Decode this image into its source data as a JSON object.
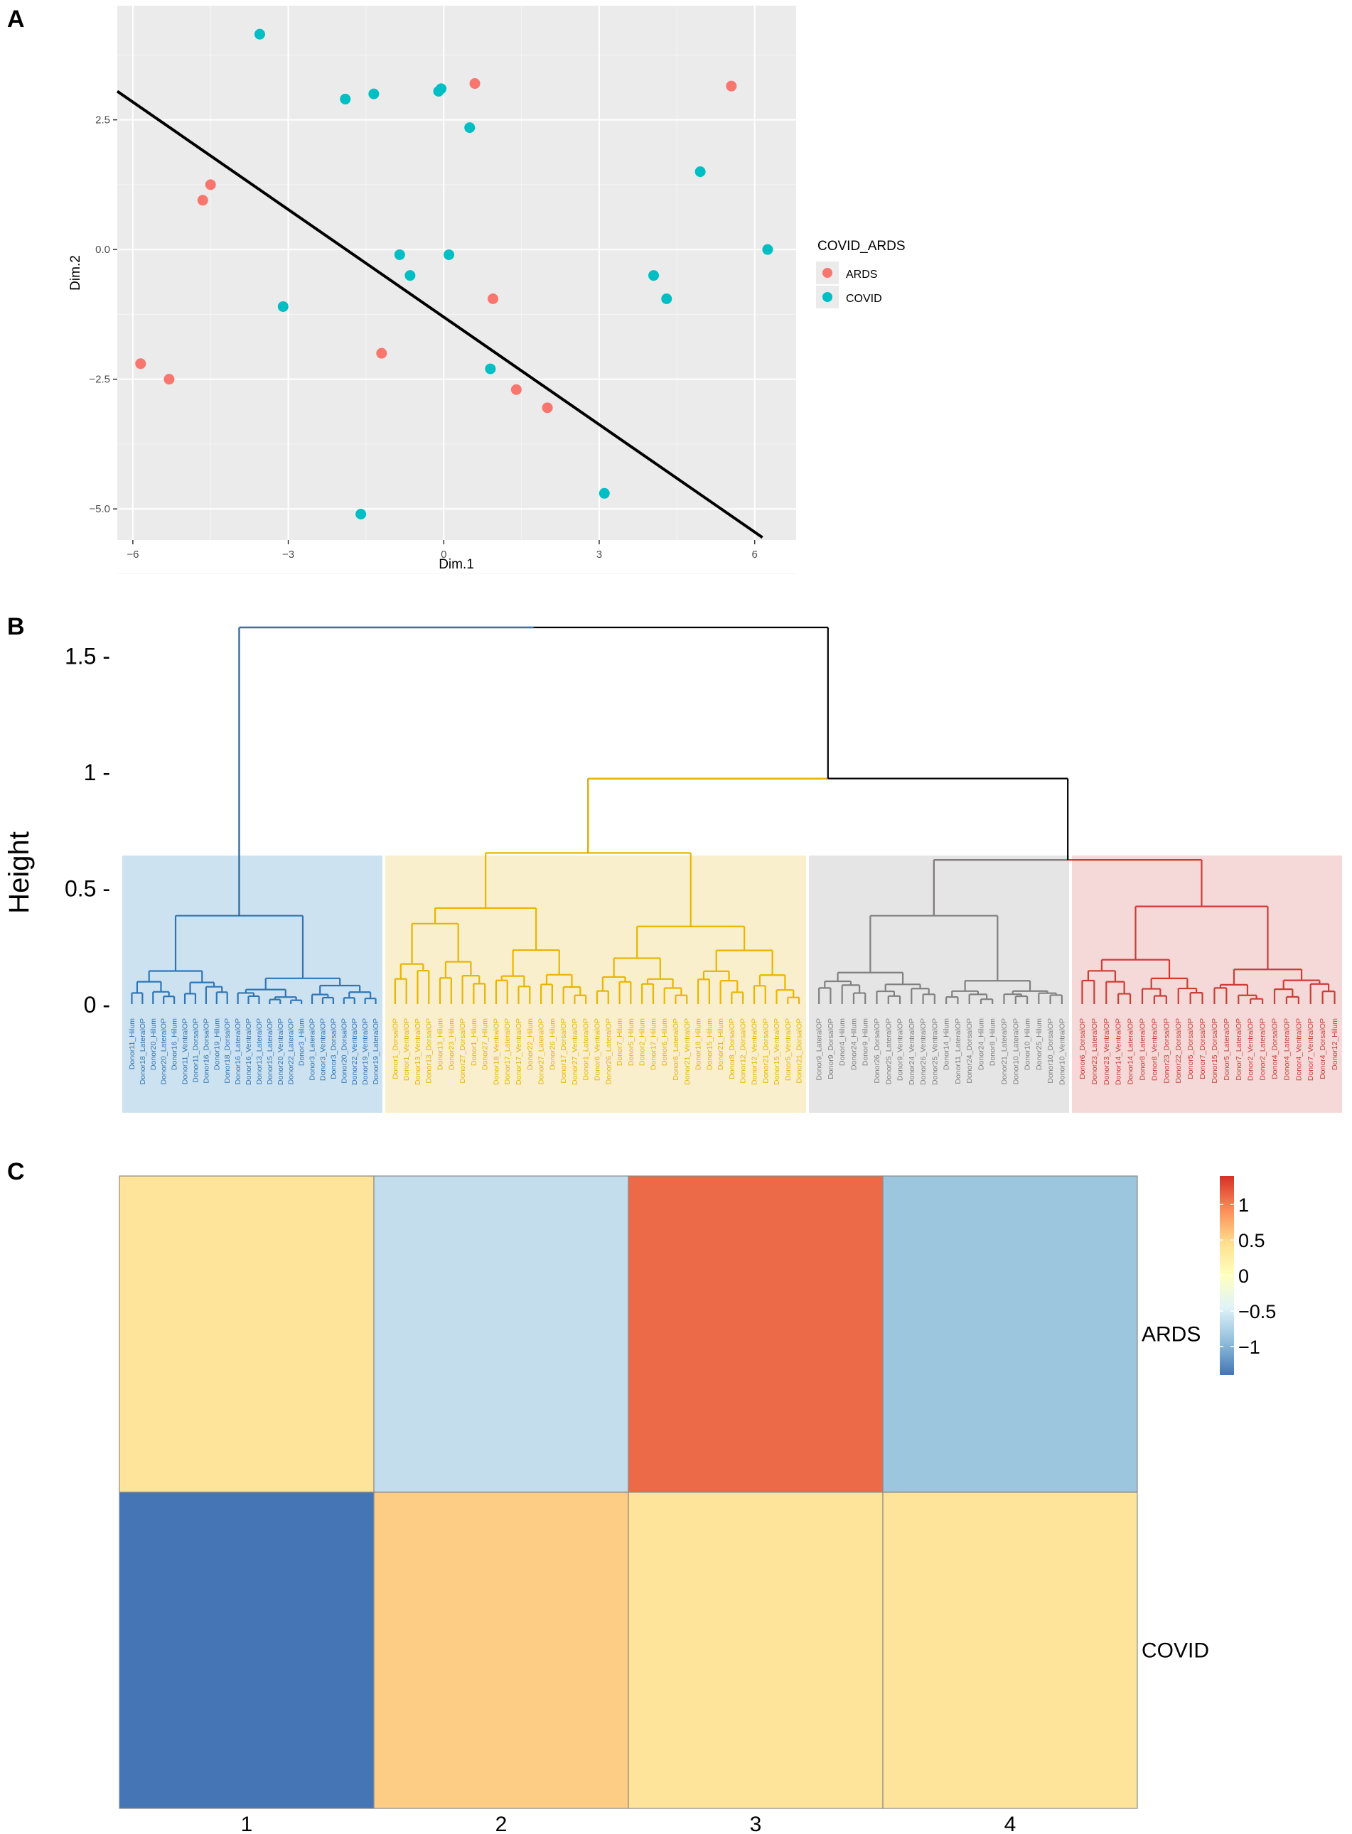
{
  "panels": {
    "a": {
      "letter": "A"
    },
    "b": {
      "letter": "B"
    },
    "c": {
      "letter": "C"
    }
  },
  "chart_data": [
    {
      "type": "scatter",
      "title": "",
      "xlabel": "Dim.1",
      "ylabel": "Dim.2",
      "xlim": [
        -6.3,
        6.8
      ],
      "ylim": [
        -5.6,
        4.7
      ],
      "x_ticks": [
        {
          "value": -6,
          "label": "−6"
        },
        {
          "value": -3,
          "label": "−3"
        },
        {
          "value": 0,
          "label": "0"
        },
        {
          "value": 3,
          "label": "3"
        },
        {
          "value": 6,
          "label": "6"
        }
      ],
      "y_ticks": [
        {
          "value": 2.5,
          "label": "2.5"
        },
        {
          "value": 0,
          "label": "0.0"
        },
        {
          "value": -2.5,
          "label": "−2.5"
        },
        {
          "value": -5,
          "label": "−5.0"
        }
      ],
      "legend": {
        "title": "COVID_ARDS",
        "position": "right",
        "entries": [
          {
            "label": "ARDS",
            "color": "#F8766D"
          },
          {
            "label": "COVID",
            "color": "#00BFC4"
          }
        ]
      },
      "series": [
        {
          "name": "ARDS",
          "color": "#F8766D",
          "points": [
            [
              0.6,
              3.2
            ],
            [
              5.55,
              3.15
            ],
            [
              -4.5,
              1.25
            ],
            [
              -4.65,
              0.95
            ],
            [
              0.95,
              -0.95
            ],
            [
              -1.2,
              -2.0
            ],
            [
              -5.85,
              -2.2
            ],
            [
              -5.3,
              -2.5
            ],
            [
              1.4,
              -2.7
            ],
            [
              2.0,
              -3.05
            ]
          ]
        },
        {
          "name": "COVID",
          "color": "#00BFC4",
          "points": [
            [
              -3.55,
              4.15
            ],
            [
              -1.9,
              2.9
            ],
            [
              -1.35,
              3.0
            ],
            [
              -0.1,
              3.05
            ],
            [
              -0.05,
              3.1
            ],
            [
              0.5,
              2.35
            ],
            [
              4.95,
              1.5
            ],
            [
              6.25,
              0.0
            ],
            [
              -0.85,
              -0.1
            ],
            [
              0.1,
              -0.1
            ],
            [
              -0.65,
              -0.5
            ],
            [
              -3.1,
              -1.1
            ],
            [
              4.05,
              -0.5
            ],
            [
              4.3,
              -0.95
            ],
            [
              0.9,
              -2.3
            ],
            [
              3.1,
              -4.7
            ],
            [
              -1.6,
              -5.1
            ]
          ]
        }
      ],
      "line": {
        "from": [
          -6.3,
          3.05
        ],
        "to": [
          6.15,
          -5.55
        ],
        "color": "#000000"
      }
    },
    {
      "type": "dendrogram",
      "ylabel": "Height",
      "ylim": [
        0,
        1.65
      ],
      "y_ticks": [
        {
          "value": 1.5,
          "label": "1.5 -"
        },
        {
          "value": 1,
          "label": "1 -"
        },
        {
          "value": 0.5,
          "label": "0.5 -"
        },
        {
          "value": 0,
          "label": "0 -"
        }
      ],
      "root_height": 1.62,
      "colors": {
        "blue": "#2e75b6",
        "yellow": "#e8b500",
        "grey": "#808080",
        "red": "#cd3c35"
      },
      "clusters": [
        {
          "name": "blue",
          "color": "#2e75b6",
          "bg": "#cde2f0",
          "labels": [
            "Donor11_Hilum",
            "Donor18_LateralOP",
            "Donor20_Hilum",
            "Donor20_LateralOP",
            "Donor16_Hilum",
            "Donor11_VentralOP",
            "Donor11_DorsalOP",
            "Donor16_DorsalOP",
            "Donor19_Hilum",
            "Donor18_DorsalOP",
            "Donor16_LateralOP",
            "Donor16_VentralOP",
            "Donor13_LateralOP",
            "Donor15_LateralOP",
            "Donor20_VentralOP",
            "Donor22_LateralOP",
            "Donor3_Hilum",
            "Donor3_LateralOP",
            "Donor3_VentralOP",
            "Donor3_DorsalOP",
            "Donor20_DorsalOP",
            "Donor22_VentralOP",
            "Donor19_VentralOP",
            "Donor19_LateralOP"
          ]
        },
        {
          "name": "yellow",
          "color": "#e8b500",
          "bg": "#f9efcc",
          "labels": [
            "Donor1_DorsalOP",
            "Donor1_VentralOP",
            "Donor13_VentralOP",
            "Donor13_DorsalOP",
            "Donor13_Hilum",
            "Donor23_Hilum",
            "Donor27_DorsalOP",
            "Donor1_Hilum",
            "Donor27_Hilum",
            "Donor18_VentralOP",
            "Donor17_LateralOP",
            "Donor17_VentralOP",
            "Donor22_Hilum",
            "Donor27_LateralOP",
            "Donor26_Hilum",
            "Donor17_DorsalOP",
            "Donor27_VentralOP",
            "Donor1_LateralOP",
            "Donor6_VentralOP",
            "Donor26_LateralOP",
            "Donor7_Hilum",
            "Donor5_Hilum",
            "Donor2_Hilum",
            "Donor17_Hilum",
            "Donor6_Hilum",
            "Donor6_LateralOP",
            "Donor21_VentralOP",
            "Donor18_Hilum",
            "Donor15_Hilum",
            "Donor21_Hilum",
            "Donor8_DorsalOP",
            "Donor12_DorsalOP",
            "Donor12_VentralOP",
            "Donor21_DorsalOP",
            "Donor15_VentralOP",
            "Donor5_VentralOP",
            "Donor21_DorsalOP"
          ]
        },
        {
          "name": "grey",
          "color": "#808080",
          "bg": "#e5e5e5",
          "labels": [
            "Donor9_LateralOP",
            "Donor9_DorsalOP",
            "Donor4_Hilum",
            "Donor24_Hilum",
            "Donor9_Hilum",
            "Donor26_DorsalOP",
            "Donor25_LateralOP",
            "Donor9_VentralOP",
            "Donor24_VentralOP",
            "Donor26_VentralOP",
            "Donor25_VentralOP",
            "Donor14_Hilum",
            "Donor11_LateralOP",
            "Donor24_DorsalOP",
            "Donor24_Hilum",
            "Donor8_Hilum",
            "Donor21_LateralOP",
            "Donor10_LateralOP",
            "Donor10_Hilum",
            "Donor25_Hilum",
            "Donor10_DorsalOP",
            "Donor10_VentralOP"
          ]
        },
        {
          "name": "red",
          "color": "#cd3c35",
          "bg": "#f4d9d8",
          "labels": [
            "Donor6_DorsalOP",
            "Donor23_LateralOP",
            "Donor23_VentralOP",
            "Donor14_VentralOP",
            "Donor14_LateralOP",
            "Donor8_LateralOP",
            "Donor8_VentralOP",
            "Donor23_DorsalOP",
            "Donor22_DorsalOP",
            "Donor5_DorsalOP",
            "Donor7_DorsalOP",
            "Donor15_DorsalOP",
            "Donor5_LateralOP",
            "Donor7_LateralOP",
            "Donor2_VentralOP",
            "Donor2_LateralOP",
            "Donor4_DorsalOP",
            "Donor4_LateralOP",
            "Donor4_VentralOP",
            "Donor7_VentralOP",
            "Donor4_DorsalOP",
            "Donor12_Hilum"
          ]
        }
      ],
      "merges": [
        {
          "cluster": "blue",
          "height": 0.38
        },
        {
          "cluster": "yellow",
          "height": 0.65
        },
        {
          "cluster": "grey",
          "height": 0.38
        },
        {
          "cluster": "red",
          "height": 0.42
        },
        {
          "children": [
            "grey",
            "red"
          ],
          "height": 0.62,
          "color": "#cd3c35"
        },
        {
          "children": [
            "yellow",
            "grey+red"
          ],
          "height": 0.97,
          "color": "#000000"
        },
        {
          "children": [
            "blue",
            "rest"
          ],
          "height": 1.62,
          "color": "#000000"
        }
      ]
    },
    {
      "type": "heatmap",
      "rows": [
        "ARDS",
        "COVID"
      ],
      "columns": [
        "1",
        "2",
        "3",
        "4"
      ],
      "values": [
        [
          0.3,
          -0.7,
          1.2,
          -1.0
        ],
        [
          -1.4,
          0.5,
          0.3,
          0.3
        ]
      ],
      "cell_colors": [
        [
          "#fde49a",
          "#c3dded",
          "#ec6a47",
          "#9cc5de"
        ],
        [
          "#4575b4",
          "#fdcc85",
          "#fde49a",
          "#fde49a"
        ]
      ],
      "colorbar": {
        "ticks": [
          {
            "value": 1,
            "label": "1"
          },
          {
            "value": 0.5,
            "label": "0.5"
          },
          {
            "value": 0,
            "label": "0"
          },
          {
            "value": -0.5,
            "label": "−0.5"
          },
          {
            "value": -1,
            "label": "−1"
          }
        ],
        "range": [
          -1.4,
          1.4
        ],
        "stops": [
          "#4575b4",
          "#91bfdb",
          "#e0f3f8",
          "#ffffbf",
          "#fee090",
          "#fc8d59",
          "#d73027"
        ]
      }
    }
  ]
}
